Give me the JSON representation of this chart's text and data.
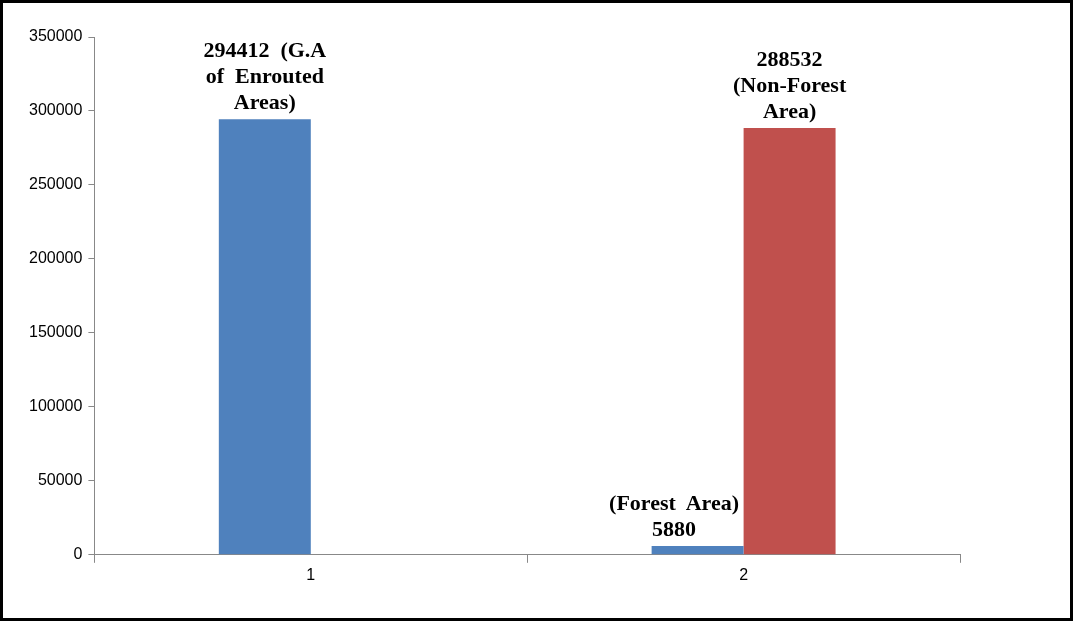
{
  "chart_data": {
    "type": "bar",
    "categories": [
      "1",
      "2"
    ],
    "series": [
      {
        "color": "#4f81bd",
        "values": [
          294412,
          5880
        ],
        "value_labels": [
          "294412  (G.A of Enrouted Areas)",
          "(Forest Area) 5880"
        ]
      },
      {
        "color": "#c0504d",
        "values": [
          null,
          288532
        ],
        "value_labels": [
          null,
          "288532  (Non-Forest Area)"
        ]
      }
    ],
    "ylim": [
      0,
      350000
    ],
    "yticks": [
      0,
      50000,
      100000,
      150000,
      200000,
      250000,
      300000,
      350000
    ],
    "grid": false,
    "legend": false
  }
}
